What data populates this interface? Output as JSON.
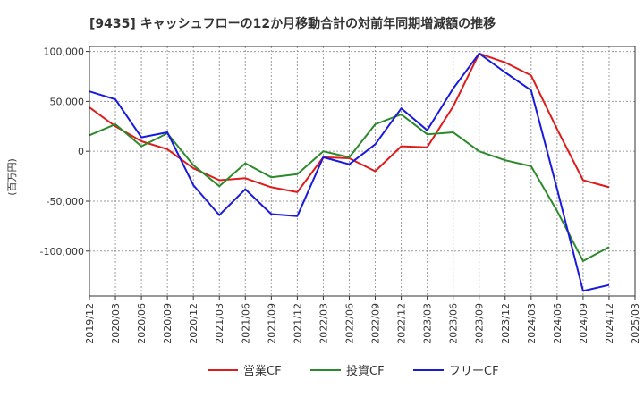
{
  "chart_data": {
    "type": "line",
    "title": "[9435]  キャッシュフローの12か月移動合計の対前年同期増減額の推移",
    "ylabel": "(百万円)",
    "xlabel": "",
    "ylim": [
      -145000,
      105000
    ],
    "yticks": [
      100000,
      50000,
      0,
      -50000,
      -100000
    ],
    "ytick_labels": [
      "100,000",
      "50,000",
      "0",
      "-50,000",
      "-100,000"
    ],
    "xtick_labels": [
      "2019/12",
      "2020/03",
      "2020/06",
      "2020/09",
      "2020/12",
      "2021/03",
      "2021/06",
      "2021/09",
      "2021/12",
      "2022/03",
      "2022/06",
      "2022/09",
      "2022/12",
      "2023/03",
      "2023/06",
      "2023/09",
      "2023/12",
      "2024/03",
      "2024/06",
      "2024/09",
      "2024/12",
      "2025/03"
    ],
    "grid": true,
    "legend_position": "bottom",
    "series": [
      {
        "name": "営業CF",
        "color": "#dd1c1c",
        "values": [
          44000,
          25000,
          10000,
          2000,
          -17000,
          -29000,
          -27000,
          -36000,
          -41000,
          -6000,
          -7000,
          -20000,
          5000,
          4000,
          45000,
          98000,
          89000,
          76000,
          22000,
          -29000,
          -36000,
          null
        ]
      },
      {
        "name": "投資CF",
        "color": "#2c8a2c",
        "values": [
          16000,
          27000,
          5000,
          18000,
          -14000,
          -35000,
          -12000,
          -26000,
          -23000,
          0,
          -6000,
          27000,
          37000,
          17000,
          19000,
          0,
          -9000,
          -15000,
          -60000,
          -110000,
          -96000,
          null
        ]
      },
      {
        "name": "フリーCF",
        "color": "#1a1adc",
        "values": [
          60000,
          52000,
          14000,
          19000,
          -34000,
          -64000,
          -38000,
          -63000,
          -65000,
          -6000,
          -13000,
          7000,
          43000,
          21000,
          63000,
          98000,
          79000,
          61000,
          -38000,
          -140000,
          -134000,
          null
        ]
      }
    ]
  }
}
